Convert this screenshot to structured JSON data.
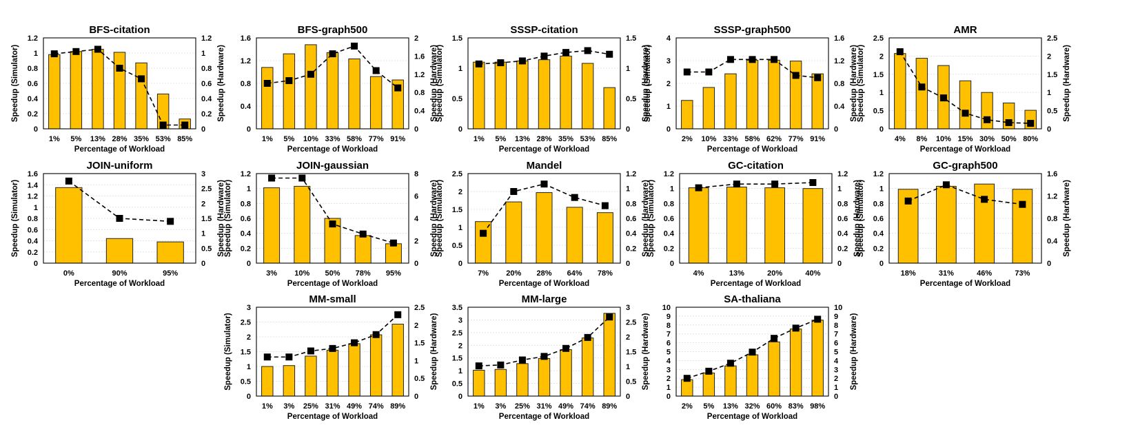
{
  "colors": {
    "bar": "#FFC000",
    "bar_stroke": "#222222",
    "line": "#000000",
    "marker": "#000000"
  },
  "chart_data": [
    {
      "type": "bar",
      "title": "BFS-citation",
      "categories": [
        "1%",
        "5%",
        "13%",
        "28%",
        "35%",
        "53%",
        "85%"
      ],
      "series": [
        {
          "type": "bar",
          "axis": "left",
          "values": [
            0.98,
            1.02,
            1.05,
            1.01,
            0.87,
            0.46,
            0.13
          ]
        },
        {
          "type": "line",
          "axis": "right",
          "values": [
            0.99,
            1.02,
            1.05,
            0.8,
            0.66,
            0.05,
            0.05
          ]
        }
      ],
      "xlabel": "Percentage of Workload",
      "ylabel_left": "Speedup (Simulator)",
      "ylabel_right": "Speedup (Hardware)",
      "ylim_left": [
        0,
        1.2
      ],
      "ylim_right": [
        0,
        1.2
      ],
      "yticks_left": [
        "0",
        "0.2",
        "0.4",
        "0.6",
        "0.8",
        "1",
        "1.2"
      ],
      "yticks_right": [
        "0",
        "0.2",
        "0.4",
        "0.6",
        "0.8",
        "1",
        "1.2"
      ],
      "grid": true
    },
    {
      "type": "bar",
      "title": "BFS-graph500",
      "categories": [
        "1%",
        "5%",
        "10%",
        "33%",
        "58%",
        "77%",
        "91%"
      ],
      "series": [
        {
          "type": "bar",
          "axis": "left",
          "values": [
            1.08,
            1.32,
            1.48,
            1.34,
            1.23,
            0.92,
            0.86
          ]
        },
        {
          "type": "line",
          "axis": "right",
          "values": [
            1.0,
            1.06,
            1.2,
            1.65,
            1.82,
            1.28,
            0.9
          ]
        }
      ],
      "xlabel": "Percentage of Workload",
      "ylabel_left": "",
      "ylabel_right": "Speedup (Hardware)",
      "ylim_left": [
        0,
        1.6
      ],
      "ylim_right": [
        0,
        2
      ],
      "yticks_left": [
        "0",
        "0.4",
        "0.8",
        "1.2",
        "1.6"
      ],
      "yticks_right": [
        "0",
        "0.4",
        "0.8",
        "1.2",
        "1.6",
        "2"
      ],
      "grid": true
    },
    {
      "type": "bar",
      "title": "SSSP-citation",
      "categories": [
        "1%",
        "5%",
        "13%",
        "28%",
        "35%",
        "53%",
        "85%"
      ],
      "series": [
        {
          "type": "bar",
          "axis": "left",
          "values": [
            1.1,
            1.1,
            1.12,
            1.14,
            1.2,
            1.08,
            0.68
          ]
        },
        {
          "type": "line",
          "axis": "right",
          "values": [
            1.07,
            1.09,
            1.12,
            1.2,
            1.26,
            1.29,
            1.23
          ]
        }
      ],
      "xlabel": "Percentage of Workload",
      "ylabel_left": "Speedup (Simulator)",
      "ylabel_right": "Speedup (Hardware)",
      "ylim_left": [
        0,
        1.5
      ],
      "ylim_right": [
        0,
        1.5
      ],
      "yticks_left": [
        "0",
        "0.5",
        "1",
        "1.5"
      ],
      "yticks_right": [
        "0",
        "0.5",
        "1",
        "1.5"
      ],
      "grid": true
    },
    {
      "type": "bar",
      "title": "SSSP-graph500",
      "categories": [
        "2%",
        "10%",
        "33%",
        "58%",
        "62%",
        "77%",
        "91%"
      ],
      "series": [
        {
          "type": "bar",
          "axis": "left",
          "values": [
            1.25,
            1.82,
            2.42,
            3.02,
            3.02,
            2.98,
            2.42
          ]
        },
        {
          "type": "line",
          "axis": "right",
          "values": [
            1.0,
            1.0,
            1.22,
            1.22,
            1.22,
            0.94,
            0.9
          ]
        }
      ],
      "xlabel": "Percentage of Workload",
      "ylabel_left": "Speedup (Simulator)",
      "ylabel_right": "Speedup (Hardware)",
      "ylim_left": [
        0,
        4
      ],
      "ylim_right": [
        0,
        1.6
      ],
      "yticks_left": [
        "0",
        "1",
        "2",
        "3",
        "4"
      ],
      "yticks_right": [
        "0",
        "0.4",
        "0.8",
        "1.2",
        "1.6"
      ],
      "grid": true
    },
    {
      "type": "bar",
      "title": "AMR",
      "categories": [
        "4%",
        "8%",
        "10%",
        "15%",
        "30%",
        "50%",
        "80%"
      ],
      "series": [
        {
          "type": "bar",
          "axis": "left",
          "values": [
            2.07,
            1.94,
            1.74,
            1.32,
            1.0,
            0.71,
            0.51
          ]
        },
        {
          "type": "line",
          "axis": "right",
          "values": [
            2.12,
            1.15,
            0.85,
            0.43,
            0.25,
            0.17,
            0.15
          ]
        }
      ],
      "xlabel": "Percentage of Workload",
      "ylabel_left": "Speedup (Simulator)",
      "ylabel_right": "Speedup (Hardware)",
      "ylim_left": [
        0,
        2.5
      ],
      "ylim_right": [
        0,
        2.5
      ],
      "yticks_left": [
        "0",
        "0.5",
        "1",
        "1.5",
        "2",
        "2.5"
      ],
      "yticks_right": [
        "0",
        "0.5",
        "1",
        "1.5",
        "2",
        "2.5"
      ],
      "grid": true
    },
    {
      "type": "bar",
      "title": "JOIN-uniform",
      "categories": [
        "0%",
        "90%",
        "95%"
      ],
      "series": [
        {
          "type": "bar",
          "axis": "left",
          "values": [
            1.35,
            0.44,
            0.38
          ]
        },
        {
          "type": "line",
          "axis": "right",
          "values": [
            2.75,
            1.5,
            1.4
          ]
        }
      ],
      "xlabel": "Percentage of Workload",
      "ylabel_left": "Speedup (Simulator)",
      "ylabel_right": "Speedup (Hardware)",
      "ylim_left": [
        0,
        1.6
      ],
      "ylim_right": [
        0,
        3
      ],
      "yticks_left": [
        "0",
        "0.2",
        "0.4",
        "0.6",
        "0.8",
        "1",
        "1.2",
        "1.4",
        "1.6"
      ],
      "yticks_right": [
        "0",
        "0.5",
        "1",
        "1.5",
        "2",
        "2.5",
        "3"
      ],
      "grid": true
    },
    {
      "type": "bar",
      "title": "JOIN-gaussian",
      "categories": [
        "3%",
        "10%",
        "50%",
        "78%",
        "95%"
      ],
      "series": [
        {
          "type": "bar",
          "axis": "left",
          "values": [
            1.01,
            1.03,
            0.6,
            0.37,
            0.26
          ]
        },
        {
          "type": "line",
          "axis": "right",
          "values": [
            7.6,
            7.6,
            3.5,
            2.6,
            1.8
          ]
        }
      ],
      "xlabel": "Percentage of Workload",
      "ylabel_left": "Speedup (Simulator)",
      "ylabel_right": "Speedup (Hardware)",
      "ylim_left": [
        0,
        1.2
      ],
      "ylim_right": [
        0,
        8
      ],
      "yticks_left": [
        "0",
        "0.2",
        "0.4",
        "0.6",
        "0.8",
        "1",
        "1.2"
      ],
      "yticks_right": [
        "0",
        "2",
        "4",
        "6",
        "8"
      ],
      "grid": true
    },
    {
      "type": "bar",
      "title": "Mandel",
      "categories": [
        "7%",
        "20%",
        "28%",
        "64%",
        "78%"
      ],
      "series": [
        {
          "type": "bar",
          "axis": "left",
          "values": [
            1.16,
            1.71,
            1.97,
            1.56,
            1.41
          ]
        },
        {
          "type": "line",
          "axis": "right",
          "values": [
            0.4,
            0.96,
            1.06,
            0.88,
            0.77
          ]
        }
      ],
      "xlabel": "Percentage of Workload",
      "ylabel_left": "Speedup (Simulator)",
      "ylabel_right": "Speedup (Hardware)",
      "ylim_left": [
        0,
        2.5
      ],
      "ylim_right": [
        0,
        1.2
      ],
      "yticks_left": [
        "0",
        "0.5",
        "1",
        "1.5",
        "2",
        "2.5"
      ],
      "yticks_right": [
        "0",
        "0.2",
        "0.4",
        "0.6",
        "0.8",
        "1",
        "1.2"
      ],
      "grid": true
    },
    {
      "type": "bar",
      "title": "GC-citation",
      "categories": [
        "4%",
        "13%",
        "20%",
        "40%"
      ],
      "series": [
        {
          "type": "bar",
          "axis": "left",
          "values": [
            1.01,
            1.02,
            1.01,
            1.0
          ]
        },
        {
          "type": "line",
          "axis": "right",
          "values": [
            1.01,
            1.06,
            1.06,
            1.08
          ]
        }
      ],
      "xlabel": "Percentage of Workload",
      "ylabel_left": "Speedup (Simulator)",
      "ylabel_right": "Speedup (Hardware)",
      "ylim_left": [
        0,
        1.2
      ],
      "ylim_right": [
        0,
        1.2
      ],
      "yticks_left": [
        "0",
        "0.2",
        "0.4",
        "0.6",
        "0.8",
        "1",
        "1.2"
      ],
      "yticks_right": [
        "0",
        "0.2",
        "0.4",
        "0.6",
        "0.8",
        "1",
        "1.2"
      ],
      "grid": true
    },
    {
      "type": "bar",
      "title": "GC-graph500",
      "categories": [
        "18%",
        "31%",
        "46%",
        "73%"
      ],
      "series": [
        {
          "type": "bar",
          "axis": "left",
          "values": [
            0.99,
            1.03,
            1.06,
            0.99
          ]
        },
        {
          "type": "line",
          "axis": "right",
          "values": [
            1.11,
            1.4,
            1.14,
            1.05
          ]
        }
      ],
      "xlabel": "Percentage of Workload",
      "ylabel_left": "Speedup (Simulator)",
      "ylabel_right": "Speedup (Hardware)",
      "ylim_left": [
        0,
        1.2
      ],
      "ylim_right": [
        0,
        1.6
      ],
      "yticks_left": [
        "0",
        "0.2",
        "0.4",
        "0.6",
        "0.8",
        "1",
        "1.2"
      ],
      "yticks_right": [
        "0",
        "0.4",
        "0.8",
        "1.2",
        "1.6"
      ],
      "grid": true
    },
    {
      "type": "bar",
      "title": "MM-small",
      "categories": [
        "1%",
        "3%",
        "25%",
        "31%",
        "49%",
        "74%",
        "89%"
      ],
      "series": [
        {
          "type": "bar",
          "axis": "left",
          "values": [
            1.0,
            1.03,
            1.35,
            1.55,
            1.77,
            2.07,
            2.43
          ]
        },
        {
          "type": "line",
          "axis": "right",
          "values": [
            1.1,
            1.1,
            1.27,
            1.34,
            1.5,
            1.73,
            2.29
          ]
        }
      ],
      "xlabel": "Percentage of Workload",
      "ylabel_left": "Speedup (Simulator)",
      "ylabel_right": "Speedup (Hardware)",
      "ylim_left": [
        0,
        3
      ],
      "ylim_right": [
        0,
        2.5
      ],
      "yticks_left": [
        "0",
        "0.5",
        "1",
        "1.5",
        "2",
        "2.5",
        "3"
      ],
      "yticks_right": [
        "0",
        "0.5",
        "1",
        "1.5",
        "2",
        "2.5"
      ],
      "grid": true
    },
    {
      "type": "bar",
      "title": "MM-large",
      "categories": [
        "1%",
        "3%",
        "25%",
        "31%",
        "49%",
        "74%",
        "89%"
      ],
      "series": [
        {
          "type": "bar",
          "axis": "left",
          "values": [
            1.02,
            1.05,
            1.28,
            1.48,
            1.83,
            2.29,
            3.26
          ]
        },
        {
          "type": "line",
          "axis": "right",
          "values": [
            1.02,
            1.05,
            1.22,
            1.34,
            1.61,
            1.98,
            2.67
          ]
        }
      ],
      "xlabel": "Percentage of Workload",
      "ylabel_left": "",
      "ylabel_right": "Speedup (Hardware)",
      "ylim_left": [
        0,
        3.5
      ],
      "ylim_right": [
        0,
        3
      ],
      "yticks_left": [
        "0",
        "0.5",
        "1",
        "1.5",
        "2",
        "2.5",
        "3",
        "3.5"
      ],
      "yticks_right": [
        "0",
        "0.5",
        "1",
        "1.5",
        "2",
        "2.5",
        "3"
      ],
      "grid": true
    },
    {
      "type": "bar",
      "title": "SA-thaliana",
      "categories": [
        "2%",
        "5%",
        "13%",
        "32%",
        "60%",
        "83%",
        "98%"
      ],
      "series": [
        {
          "type": "bar",
          "axis": "left",
          "values": [
            1.85,
            2.6,
            3.4,
            4.65,
            6.1,
            7.55,
            8.55
          ]
        },
        {
          "type": "line",
          "axis": "right",
          "values": [
            2.0,
            2.8,
            3.7,
            4.95,
            6.5,
            7.65,
            8.65
          ]
        }
      ],
      "xlabel": "Percentage of Workload",
      "ylabel_left": "",
      "ylabel_right": "Speedup (Hardware)",
      "ylim_left": [
        0,
        10
      ],
      "ylim_right": [
        0,
        10
      ],
      "yticks_left": [
        "0",
        "1",
        "2",
        "3",
        "4",
        "5",
        "6",
        "7",
        "8",
        "9",
        "10"
      ],
      "yticks_right": [
        "0",
        "1",
        "2",
        "3",
        "4",
        "5",
        "6",
        "7",
        "8",
        "9",
        "10"
      ],
      "grid": true
    }
  ]
}
